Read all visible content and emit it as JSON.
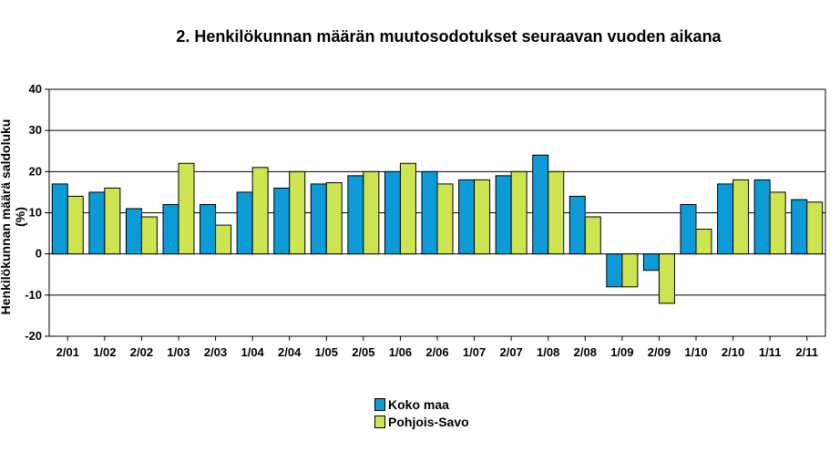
{
  "chart_data": {
    "type": "bar",
    "title": "2. Henkilökunnan määrän muutosodotukset seuraavan vuoden aikana",
    "xlabel": "",
    "ylabel": "Henkilökunnan määrä saldoluku (%)",
    "ylim": [
      -20,
      40
    ],
    "yticks": [
      -20,
      -10,
      0,
      10,
      20,
      30,
      40
    ],
    "grid": true,
    "legend_position": "bottom",
    "categories": [
      "2/01",
      "1/02",
      "2/02",
      "1/03",
      "2/03",
      "1/04",
      "2/04",
      "1/05",
      "2/05",
      "1/06",
      "2/06",
      "1/07",
      "2/07",
      "1/08",
      "2/08",
      "1/09",
      "2/09",
      "1/10",
      "2/10",
      "1/11",
      "2/11"
    ],
    "series": [
      {
        "name": "Koko maa",
        "color": "#0c9bd7",
        "values": [
          17,
          15,
          11,
          12,
          12,
          15,
          16,
          17,
          19,
          20,
          20,
          18,
          19,
          24,
          14,
          -8,
          -4,
          12,
          17,
          18,
          13.2
        ]
      },
      {
        "name": "Pohjois-Savo",
        "color": "#cfe452",
        "values": [
          14,
          16,
          9,
          22,
          7,
          21,
          20,
          17.3,
          20,
          22,
          17,
          18,
          20,
          20,
          9,
          -8,
          -12,
          6,
          18,
          15,
          12.6
        ]
      }
    ]
  }
}
